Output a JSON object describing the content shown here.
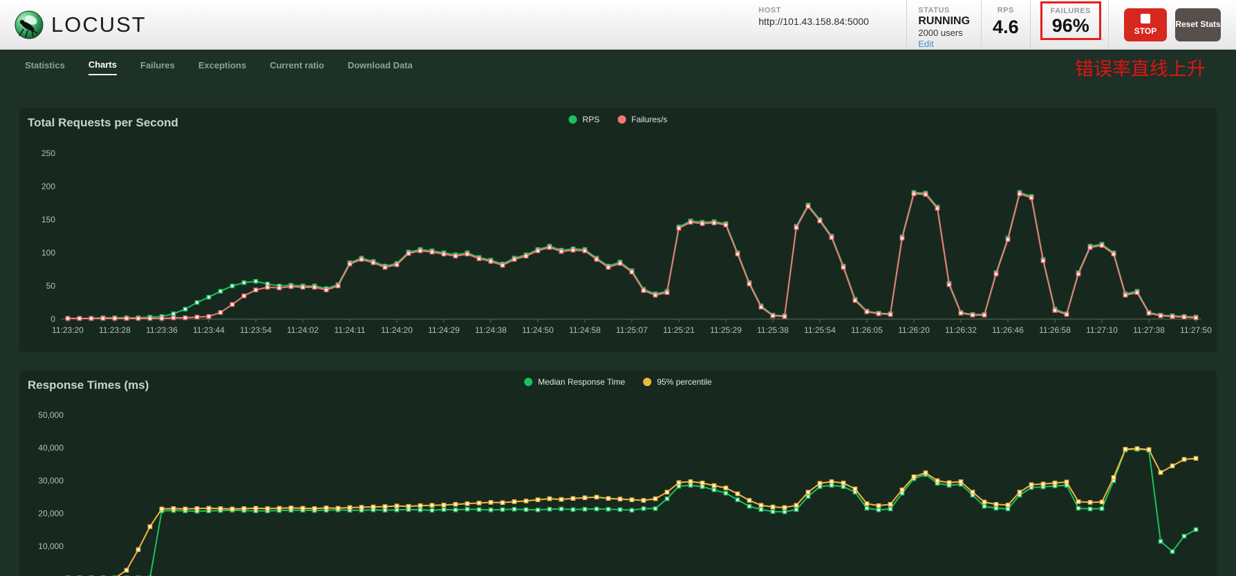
{
  "header": {
    "brand": "LOCUST",
    "host": {
      "label": "HOST",
      "value": "http://101.43.158.84:5000"
    },
    "status": {
      "label": "STATUS",
      "value": "RUNNING",
      "users": "2000 users",
      "edit_label": "Edit"
    },
    "rps": {
      "label": "RPS",
      "value": "4.6"
    },
    "failures": {
      "label": "FAILURES",
      "value": "96%"
    },
    "stop_button": {
      "label": "STOP"
    },
    "reset_button": {
      "label": "Reset Stats"
    }
  },
  "nav": {
    "items": [
      {
        "label": "Statistics",
        "active": false
      },
      {
        "label": "Charts",
        "active": true
      },
      {
        "label": "Failures",
        "active": false
      },
      {
        "label": "Exceptions",
        "active": false
      },
      {
        "label": "Current ratio",
        "active": false
      },
      {
        "label": "Download Data",
        "active": false
      }
    ]
  },
  "annotation": {
    "text": "错误率直线上升",
    "color": "#e01414"
  },
  "colors": {
    "rps_line": "#1dc060",
    "failures_line": "#f17878",
    "median_line": "#1dc060",
    "percentile_line": "#f0b73e",
    "accent_red_box": "#e41d1d"
  },
  "chart_data": [
    {
      "type": "line",
      "title": "Total Requests per Second",
      "legend_position": "top-center",
      "grid": false,
      "ylim": [
        0,
        250
      ],
      "ytick_values": [
        0,
        50,
        100,
        150,
        200,
        250
      ],
      "ytick_labels": [
        "0",
        "50",
        "100",
        "150",
        "200",
        "250"
      ],
      "label_every": 4,
      "x_labels": [
        "11:23:20",
        "11:23:28",
        "11:23:36",
        "11:23:44",
        "11:23:54",
        "11:24:02",
        "11:24:11",
        "11:24:20",
        "11:24:29",
        "11:24:38",
        "11:24:50",
        "11:24:58",
        "11:25:07",
        "11:25:21",
        "11:25:29",
        "11:25:38",
        "11:25:54",
        "11:26:05",
        "11:26:20",
        "11:26:32",
        "11:26:46",
        "11:26:58",
        "11:27:10",
        "11:27:38",
        "11:27:50"
      ],
      "series": [
        {
          "name": "RPS",
          "color": "#1dc060",
          "values": [
            1,
            1,
            1,
            2,
            2,
            2,
            2,
            3,
            4,
            8,
            15,
            25,
            33,
            42,
            50,
            55,
            57,
            53,
            50,
            51,
            50,
            50,
            46,
            52,
            85,
            92,
            87,
            80,
            84,
            101,
            105,
            103,
            100,
            97,
            100,
            93,
            89,
            83,
            92,
            97,
            105,
            110,
            104,
            106,
            105,
            92,
            80,
            86,
            73,
            45,
            38,
            42,
            139,
            148,
            146,
            147,
            144,
            100,
            55,
            20,
            6,
            5,
            140,
            172,
            150,
            125,
            80,
            30,
            12,
            9,
            8,
            124,
            191,
            190,
            169,
            54,
            10,
            7,
            7,
            70,
            122,
            191,
            185,
            90,
            15,
            8,
            70,
            110,
            113,
            100,
            38,
            42,
            10,
            6,
            5,
            4,
            3
          ]
        },
        {
          "name": "Failures/s",
          "color": "#f17878",
          "values": [
            1,
            1,
            1,
            1,
            1,
            1,
            1,
            1,
            1,
            2,
            2,
            3,
            4,
            10,
            22,
            35,
            44,
            48,
            47,
            49,
            48,
            48,
            44,
            50,
            83,
            90,
            85,
            78,
            82,
            99,
            103,
            101,
            98,
            95,
            98,
            91,
            87,
            81,
            90,
            95,
            103,
            108,
            102,
            104,
            103,
            90,
            78,
            84,
            71,
            43,
            36,
            40,
            137,
            146,
            144,
            145,
            142,
            98,
            53,
            18,
            5,
            4,
            138,
            170,
            148,
            123,
            78,
            28,
            11,
            8,
            7,
            122,
            189,
            188,
            167,
            52,
            9,
            6,
            6,
            68,
            120,
            189,
            183,
            88,
            13,
            7,
            68,
            108,
            111,
            98,
            36,
            40,
            9,
            5,
            4,
            3,
            2
          ]
        }
      ]
    },
    {
      "type": "line",
      "title": "Response Times (ms)",
      "legend_position": "top-center",
      "grid": false,
      "ylim": [
        0,
        52000
      ],
      "ytick_values": [
        10000,
        20000,
        30000,
        40000,
        50000
      ],
      "ytick_labels": [
        "10,000",
        "20,000",
        "30,000",
        "40,000",
        "50,000"
      ],
      "label_every": 4,
      "x_labels": [],
      "series": [
        {
          "name": "Median Response Time",
          "color": "#1dc060",
          "values": [
            400,
            400,
            400,
            400,
            400,
            400,
            400,
            400,
            20800,
            20900,
            20800,
            20700,
            20800,
            20900,
            21000,
            20900,
            20800,
            20800,
            20900,
            21000,
            21000,
            20900,
            21000,
            21100,
            21000,
            21000,
            21100,
            21000,
            21100,
            21200,
            21100,
            21000,
            21200,
            21100,
            21300,
            21200,
            21100,
            21200,
            21300,
            21200,
            21100,
            21300,
            21400,
            21200,
            21300,
            21400,
            21300,
            21200,
            21000,
            21500,
            21500,
            24500,
            28300,
            28600,
            28200,
            27200,
            26200,
            24200,
            22200,
            21200,
            20600,
            20500,
            21200,
            25200,
            28200,
            28600,
            28200,
            26500,
            21600,
            21100,
            21400,
            26200,
            30600,
            31900,
            29200,
            28600,
            28900,
            25600,
            22200,
            21600,
            21400,
            25600,
            27900,
            28100,
            28400,
            28600,
            21600,
            21400,
            21500,
            30000,
            39400,
            39600,
            39300,
            11500,
            8400,
            13100,
            15100
          ]
        },
        {
          "name": "95% percentile",
          "color": "#f0b73e",
          "values": [
            300,
            300,
            300,
            300,
            300,
            2700,
            9000,
            16000,
            21400,
            21500,
            21400,
            21500,
            21600,
            21500,
            21400,
            21500,
            21600,
            21500,
            21600,
            21700,
            21600,
            21500,
            21700,
            21600,
            21800,
            21900,
            22000,
            22100,
            22300,
            22200,
            22400,
            22500,
            22600,
            22800,
            23000,
            23200,
            23400,
            23300,
            23600,
            23800,
            24200,
            24500,
            24300,
            24600,
            24800,
            25000,
            24600,
            24400,
            24200,
            24000,
            24500,
            26500,
            29400,
            29700,
            29300,
            28500,
            27800,
            26000,
            24000,
            22500,
            22000,
            21800,
            22500,
            26500,
            29200,
            29700,
            29300,
            27500,
            23000,
            22400,
            22800,
            27200,
            31200,
            32400,
            30000,
            29400,
            29700,
            26500,
            23500,
            22800,
            22600,
            26500,
            28800,
            29000,
            29300,
            29600,
            23600,
            23400,
            23500,
            31000,
            39600,
            39800,
            39500,
            32500,
            34500,
            36500,
            36800
          ]
        }
      ]
    }
  ]
}
